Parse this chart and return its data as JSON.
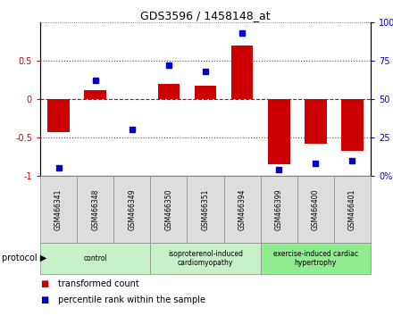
{
  "title": "GDS3596 / 1458148_at",
  "samples": [
    "GSM466341",
    "GSM466348",
    "GSM466349",
    "GSM466350",
    "GSM466351",
    "GSM466394",
    "GSM466399",
    "GSM466400",
    "GSM466401"
  ],
  "bar_values": [
    -0.43,
    0.12,
    0.0,
    0.2,
    0.17,
    0.7,
    -0.85,
    -0.58,
    -0.67
  ],
  "percentile_values": [
    0.05,
    0.62,
    0.3,
    0.72,
    0.68,
    0.93,
    0.04,
    0.08,
    0.1
  ],
  "bar_color": "#cc0000",
  "percentile_color": "#0000cc",
  "ylim": [
    -1.0,
    1.0
  ],
  "yticks_left": [
    -1.0,
    -0.5,
    0.0,
    0.5
  ],
  "ytick_labels_left": [
    "-1",
    "-0.5",
    "0",
    "0.5"
  ],
  "yticks_right": [
    0.0,
    0.25,
    0.5,
    0.75,
    1.0
  ],
  "ytick_labels_right": [
    "0%",
    "25",
    "50",
    "75",
    "100%"
  ],
  "groups": [
    {
      "label": "control",
      "start": 0,
      "end": 3,
      "color": "#c8f0c8"
    },
    {
      "label": "isoproterenol-induced\ncardiomyopathy",
      "start": 3,
      "end": 6,
      "color": "#c8f0c8"
    },
    {
      "label": "exercise-induced cardiac\nhypertrophy",
      "start": 6,
      "end": 9,
      "color": "#90ee90"
    }
  ],
  "protocol_label": "protocol",
  "legend_bar_label": "transformed count",
  "legend_pct_label": "percentile rank within the sample",
  "hline_color": "#cc0000",
  "dotted_line_color": "#555555"
}
